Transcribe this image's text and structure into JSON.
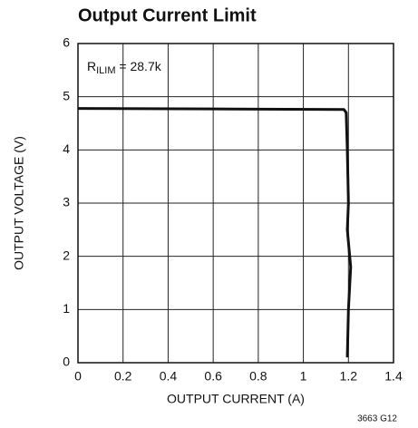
{
  "chart_data": {
    "type": "line",
    "title": "Output Current Limit",
    "xlabel": "OUTPUT CURRENT (A)",
    "ylabel": "OUTPUT VOLTAGE (V)",
    "annotation": {
      "main": "R",
      "sub": "ILIM",
      "rest": " = 28.7k"
    },
    "footnote": "3663 G12",
    "xlim": [
      0,
      1.4
    ],
    "xticks": [
      0,
      0.2,
      0.4,
      0.6,
      0.8,
      1,
      1.2,
      1.4
    ],
    "ylim": [
      0,
      6
    ],
    "yticks": [
      0,
      1,
      2,
      3,
      4,
      5,
      6
    ],
    "grid": true,
    "series": [
      {
        "color": "#111111",
        "x": [
          0,
          0.6,
          1.18,
          1.19,
          1.195,
          1.2,
          1.195,
          1.21,
          1.2,
          1.195
        ],
        "values": [
          4.78,
          4.77,
          4.76,
          4.7,
          4.0,
          3.0,
          2.5,
          1.8,
          1.0,
          0.1
        ]
      }
    ]
  }
}
